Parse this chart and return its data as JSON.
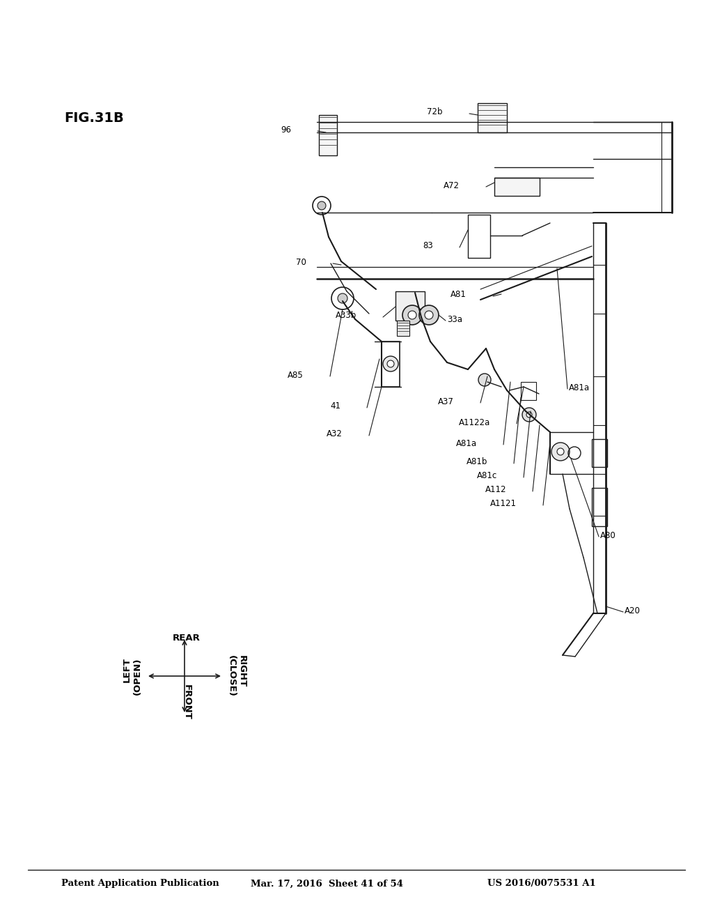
{
  "page_title_left": "Patent Application Publication",
  "page_title_mid": "Mar. 17, 2016  Sheet 41 of 54",
  "page_title_right": "US 2016/0075531 A1",
  "fig_label": "FIG.31B",
  "background_color": "#ffffff",
  "text_color": "#000000",
  "line_color": "#1a1a1a"
}
